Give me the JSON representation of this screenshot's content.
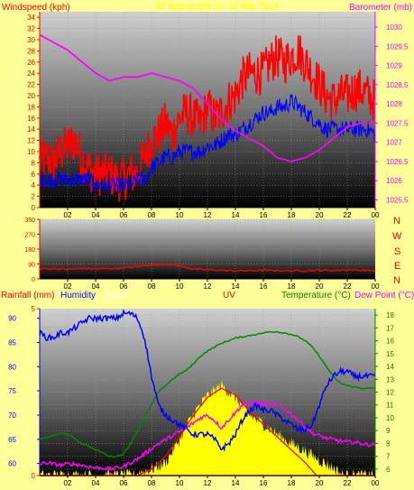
{
  "header": {
    "windspeed_label": "Windspeed (kph)",
    "title": "All data graph on: 12 Mar 2014",
    "barometer_label": "Barometer (mb)"
  },
  "bottom_header": {
    "rainfall_label": "Rainfall (mm)",
    "humidity_label": "Humidity",
    "solar_label": "Solar",
    "uv_label": "UV",
    "temperature_label": "Temperature (°C)",
    "dewpoint_label": "Dew Point (°C)"
  },
  "compass_letters": [
    "N",
    "W",
    "S",
    "E",
    "N"
  ],
  "colors": {
    "background": "#ffff99",
    "windspeed": "#ff0000",
    "windspeed_avg": "#0000ff",
    "barometer": "#ff00ff",
    "wind_direction": "#ff0000",
    "humidity": "#0000ff",
    "solar": "#ffff00",
    "uv": "#ff0000",
    "temperature": "#008800",
    "dewpoint": "#ff00ff",
    "rainfall": "#ff0000"
  },
  "chart_data": [
    {
      "type": "line",
      "panel": "wind-barometer",
      "x_ticks": [
        "02",
        "04",
        "06",
        "08",
        "10",
        "12",
        "14",
        "16",
        "18",
        "20",
        "22",
        "00"
      ],
      "xlim": [
        0,
        24
      ],
      "ylabel": "Windspeed (kph)",
      "y_ticks": [
        0,
        2,
        4,
        6,
        8,
        10,
        12,
        14,
        16,
        18,
        20,
        22,
        24,
        26,
        28,
        30,
        32,
        34
      ],
      "ylim": [
        0,
        35
      ],
      "y2label": "Barometer (mb)",
      "y2_ticks": [
        "1025,5",
        "1026",
        "1026,5",
        "1027",
        "1027,5",
        "1028",
        "1028,5",
        "1029",
        "1029,5",
        "1030"
      ],
      "y2lim": [
        1025.3,
        1030.4
      ],
      "series": [
        {
          "name": "Windspeed (kph)",
          "axis": "left",
          "noise": 4,
          "x": [
            0,
            0.5,
            1,
            1.5,
            2,
            2.5,
            3,
            3.5,
            4,
            4.5,
            5,
            5.5,
            6,
            6.5,
            7,
            7.5,
            8,
            8.5,
            9,
            9.5,
            10,
            10.5,
            11,
            11.5,
            12,
            12.5,
            13,
            13.5,
            14,
            14.5,
            15,
            15.5,
            16,
            16.5,
            17,
            17.5,
            18,
            18.5,
            19,
            19.5,
            20,
            20.5,
            21,
            21.5,
            22,
            22.5,
            23,
            23.5,
            24
          ],
          "values": [
            8,
            9,
            8,
            10,
            11,
            12,
            9,
            7,
            6,
            6,
            6,
            5,
            5,
            6,
            6,
            9,
            12,
            13,
            15,
            13,
            16,
            17,
            16,
            15,
            18,
            16,
            17,
            19,
            20,
            23,
            24,
            24,
            24,
            26,
            27,
            26,
            27,
            28,
            26,
            24,
            22,
            20,
            19,
            20,
            20,
            21,
            21,
            20,
            19
          ]
        },
        {
          "name": "Average windspeed",
          "axis": "left",
          "noise": 1.5,
          "x": [
            0,
            0.5,
            1,
            1.5,
            2,
            2.5,
            3,
            3.5,
            4,
            4.5,
            5,
            5.5,
            6,
            6.5,
            7,
            7.5,
            8,
            8.5,
            9,
            9.5,
            10,
            10.5,
            11,
            11.5,
            12,
            12.5,
            13,
            13.5,
            14,
            14.5,
            15,
            15.5,
            16,
            16.5,
            17,
            17.5,
            18,
            18.5,
            19,
            19.5,
            20,
            20.5,
            21,
            21.5,
            22,
            22.5,
            23,
            23.5,
            24
          ],
          "values": [
            5,
            5,
            5,
            5,
            5,
            5,
            5,
            5,
            4,
            4,
            4,
            4,
            4,
            4,
            5,
            5,
            7,
            8,
            9,
            9,
            10,
            10,
            10,
            10,
            11,
            11,
            12,
            13,
            13,
            14,
            15,
            16,
            17,
            17,
            18,
            18,
            19,
            18,
            17,
            16,
            15,
            14,
            14,
            14,
            14,
            14,
            14,
            14,
            13
          ]
        },
        {
          "name": "Barometer (mb)",
          "axis": "right",
          "noise": 0,
          "x": [
            0,
            1,
            2,
            3,
            4,
            5,
            6,
            7,
            8,
            9,
            10,
            11,
            12,
            13,
            14,
            15,
            16,
            17,
            18,
            19,
            20,
            21,
            22,
            23,
            24
          ],
          "values": [
            1029.8,
            1029.6,
            1029.4,
            1029.1,
            1028.8,
            1028.6,
            1028.7,
            1028.7,
            1028.8,
            1028.7,
            1028.6,
            1028.4,
            1028.0,
            1027.6,
            1027.3,
            1027.1,
            1026.9,
            1026.6,
            1026.5,
            1026.6,
            1026.8,
            1027.1,
            1027.4,
            1027.5,
            1027.5
          ]
        }
      ]
    },
    {
      "type": "line",
      "panel": "wind-direction",
      "x_ticks": [
        "02",
        "04",
        "06",
        "08",
        "10",
        "12",
        "14",
        "16",
        "18",
        "20",
        "22",
        "00"
      ],
      "xlim": [
        0,
        24
      ],
      "y_ticks": [
        0,
        90,
        180,
        270,
        360
      ],
      "ylim": [
        0,
        360
      ],
      "series": [
        {
          "name": "Wind direction",
          "noise": 5,
          "x": [
            0,
            1,
            2,
            3,
            4,
            5,
            6,
            7,
            8,
            9,
            10,
            11,
            12,
            13,
            14,
            15,
            16,
            17,
            18,
            19,
            20,
            21,
            22,
            23,
            24
          ],
          "values": [
            60,
            62,
            58,
            63,
            60,
            62,
            66,
            75,
            85,
            88,
            78,
            60,
            55,
            52,
            48,
            50,
            52,
            50,
            48,
            50,
            52,
            50,
            55,
            52,
            50
          ]
        }
      ]
    },
    {
      "type": "line",
      "panel": "rain-humidity-temperature",
      "x_ticks": [
        "02",
        "04",
        "06",
        "08",
        "10",
        "12",
        "14",
        "16",
        "18",
        "20",
        "22",
        "00"
      ],
      "xlim": [
        0,
        24
      ],
      "ylabel": "Rainfall (mm)",
      "y_rain_ticks": [
        0,
        5
      ],
      "ylim_rain": [
        0,
        5
      ],
      "y_humidity_ticks": [
        60,
        65,
        70,
        75,
        80,
        85,
        90
      ],
      "ylim_humidity": [
        57.5,
        92
      ],
      "y2label": "Temperature (°C)",
      "y2_ticks": [
        6,
        7,
        8,
        9,
        10,
        11,
        12,
        13,
        14,
        15,
        16,
        17,
        18
      ],
      "y2lim": [
        5.5,
        18.5
      ],
      "series": [
        {
          "name": "Humidity",
          "axis": "humidity",
          "noise": 0.6,
          "x": [
            0,
            0.5,
            1,
            1.5,
            2,
            2.5,
            3,
            3.5,
            4,
            4.5,
            5,
            5.5,
            6,
            6.5,
            7,
            7.5,
            8,
            8.5,
            9,
            9.5,
            10,
            10.5,
            11,
            11.5,
            12,
            12.5,
            13,
            13.5,
            14,
            14.5,
            15,
            15.5,
            16,
            16.5,
            17,
            17.5,
            18,
            18.5,
            19,
            19.5,
            20,
            20.5,
            21,
            21.5,
            22,
            22.5,
            23,
            23.5,
            24
          ],
          "values": [
            87,
            86,
            86,
            87,
            87,
            88,
            89,
            90,
            90,
            90,
            90,
            90,
            91,
            91,
            90,
            86,
            78,
            72,
            70,
            69,
            68,
            67,
            66,
            66,
            66,
            65,
            63,
            64,
            66,
            69,
            71,
            72,
            71,
            71,
            70,
            69,
            68,
            67,
            67,
            68,
            72,
            76,
            78,
            79,
            79,
            78,
            78,
            78,
            78
          ]
        },
        {
          "name": "Temperature (°C)",
          "axis": "temperature",
          "noise": 0.05,
          "x": [
            0,
            0.5,
            1,
            1.5,
            2,
            2.5,
            3,
            3.5,
            4,
            4.5,
            5,
            5.5,
            6,
            6.5,
            7,
            7.5,
            8,
            8.5,
            9,
            9.5,
            10,
            10.5,
            11,
            11.5,
            12,
            12.5,
            13,
            13.5,
            14,
            14.5,
            15,
            15.5,
            16,
            16.5,
            17,
            17.5,
            18,
            18.5,
            19,
            19.5,
            20,
            20.5,
            21,
            21.5,
            22,
            22.5,
            23,
            23.5,
            24
          ],
          "values": [
            8.3,
            8.5,
            8.6,
            8.8,
            8.7,
            8.4,
            8.0,
            7.8,
            7.5,
            7.3,
            7.0,
            7.0,
            7.2,
            8.0,
            9.0,
            10.0,
            11.0,
            12.0,
            12.5,
            13.0,
            13.4,
            13.7,
            14.2,
            14.8,
            15.2,
            15.5,
            15.8,
            16.0,
            16.2,
            16.3,
            16.4,
            16.5,
            16.6,
            16.7,
            16.7,
            16.6,
            16.5,
            16.3,
            16.0,
            15.5,
            14.8,
            14.0,
            13.2,
            12.7,
            12.5,
            12.4,
            12.3,
            12.3,
            12.3
          ]
        },
        {
          "name": "Dew Point (°C)",
          "axis": "temperature",
          "noise": 0.15,
          "x": [
            0,
            0.5,
            1,
            1.5,
            2,
            2.5,
            3,
            3.5,
            4,
            4.5,
            5,
            5.5,
            6,
            6.5,
            7,
            7.5,
            8,
            8.5,
            9,
            9.5,
            10,
            10.5,
            11,
            11.5,
            12,
            12.5,
            13,
            13.5,
            14,
            14.5,
            15,
            15.5,
            16,
            16.5,
            17,
            17.5,
            18,
            18.5,
            19,
            19.5,
            20,
            20.5,
            21,
            21.5,
            22,
            22.5,
            23,
            23.5,
            24
          ],
          "values": [
            6.4,
            6.5,
            6.4,
            6.3,
            6.4,
            6.4,
            6.3,
            6.2,
            6.1,
            6.1,
            6.0,
            6.1,
            6.2,
            6.5,
            6.8,
            7.2,
            7.6,
            8.0,
            8.3,
            8.6,
            8.9,
            9.2,
            9.6,
            10.0,
            10.2,
            9.8,
            9.2,
            9.8,
            10.4,
            11.0,
            11.2,
            11.2,
            11.1,
            11.0,
            11.0,
            10.7,
            10.3,
            9.8,
            9.3,
            8.8,
            8.6,
            8.4,
            8.3,
            8.2,
            8.1,
            8.1,
            8.0,
            7.9,
            7.9
          ]
        },
        {
          "name": "Solar",
          "axis": "temperature",
          "noise": 0.5,
          "fill": true,
          "x": [
            0,
            6.8,
            7,
            8,
            9,
            10,
            11,
            12,
            13,
            14,
            15,
            16,
            17,
            18,
            19,
            20,
            21,
            21.8,
            24
          ],
          "values": [
            5.5,
            5.5,
            5.7,
            6.0,
            6.5,
            8.3,
            10.3,
            11.7,
            12.5,
            11.5,
            10.2,
            9.5,
            8.7,
            8.0,
            7.4,
            6.7,
            6.1,
            5.5,
            5.5
          ]
        },
        {
          "name": "UV",
          "axis": "temperature",
          "noise": 0,
          "x": [
            0,
            7,
            8,
            9,
            10,
            11,
            12,
            13,
            14,
            15,
            16,
            17,
            18,
            19,
            19.8,
            24
          ],
          "values": [
            5.5,
            5.5,
            6.0,
            7.0,
            8.5,
            10.2,
            11.6,
            12.3,
            11.8,
            10.5,
            9.5,
            8.5,
            7.5,
            6.5,
            5.5,
            5.5
          ]
        },
        {
          "name": "Rainfall (mm)",
          "axis": "rain",
          "noise": 0,
          "x": [
            0,
            24
          ],
          "values": [
            0,
            0
          ]
        }
      ]
    }
  ]
}
